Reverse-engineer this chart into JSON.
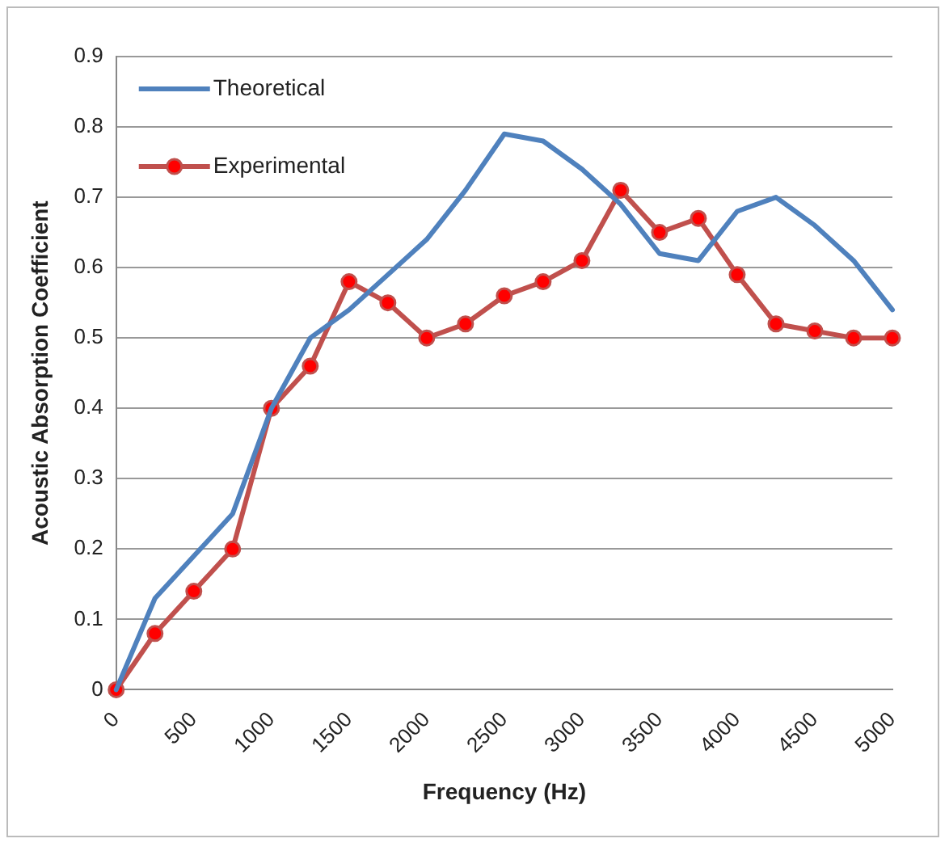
{
  "chart_data": {
    "type": "line",
    "xlabel": "Frequency (Hz)",
    "ylabel": "Acoustic Absorption Coefficient",
    "x": [
      0,
      250,
      500,
      750,
      1000,
      1250,
      1500,
      1750,
      2000,
      2250,
      2500,
      2750,
      3000,
      3250,
      3500,
      3750,
      4000,
      4250,
      4500,
      4750,
      5000
    ],
    "series": [
      {
        "name": "Theoretical",
        "color": "#4f81bd",
        "marker": "none",
        "values": [
          0,
          0.13,
          0.19,
          0.25,
          0.4,
          0.5,
          0.54,
          0.59,
          0.64,
          0.71,
          0.79,
          0.78,
          0.74,
          0.69,
          0.62,
          0.61,
          0.68,
          0.7,
          0.66,
          0.61,
          0.54
        ]
      },
      {
        "name": "Experimental",
        "color": "#c0504d",
        "marker": "circle",
        "values": [
          0,
          0.08,
          0.14,
          0.2,
          0.4,
          0.46,
          0.58,
          0.55,
          0.5,
          0.52,
          0.56,
          0.58,
          0.61,
          0.71,
          0.65,
          0.67,
          0.59,
          0.52,
          0.51,
          0.5,
          0.5
        ]
      }
    ],
    "xlim": [
      0,
      5000
    ],
    "xticks": [
      0,
      500,
      1000,
      1500,
      2000,
      2500,
      3000,
      3500,
      4000,
      4500,
      5000
    ],
    "ylim": [
      0,
      0.9
    ],
    "yticks": [
      0,
      0.1,
      0.2,
      0.3,
      0.4,
      0.5,
      0.6,
      0.7,
      0.8,
      0.9
    ],
    "grid": "y",
    "legend": "top left",
    "line_style": "solid"
  }
}
